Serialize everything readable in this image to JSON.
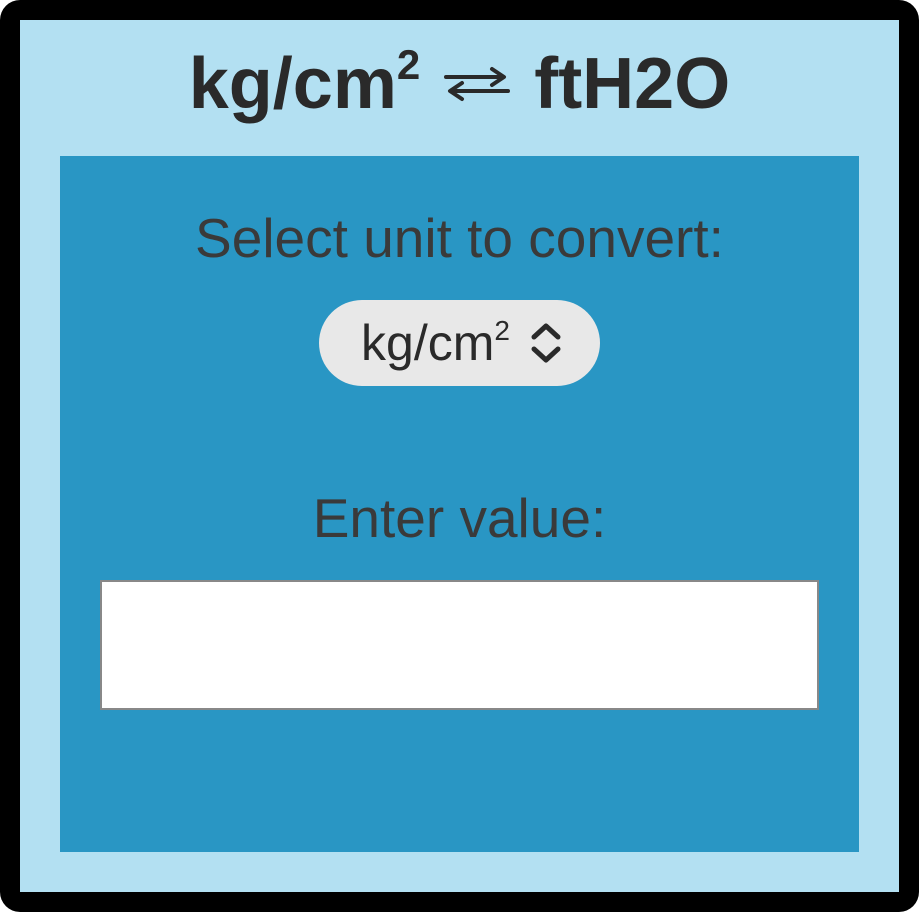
{
  "colors": {
    "outer_border": "#000000",
    "light_panel": "#b3e0f2",
    "inner_panel": "#2996c4",
    "title_text": "#2a2a2a",
    "label_text": "#3a3a3a",
    "pill_bg": "#e8e8e8",
    "input_bg": "#ffffff",
    "input_border": "#888888"
  },
  "title": {
    "left_unit_html": "kg/cm<sup>2</sup>",
    "right_unit": "ftH2O"
  },
  "form": {
    "select_label": "Select unit to convert:",
    "selected_unit_html": "kg/cm<sup>2</sup>",
    "value_label": "Enter value:",
    "value": ""
  }
}
